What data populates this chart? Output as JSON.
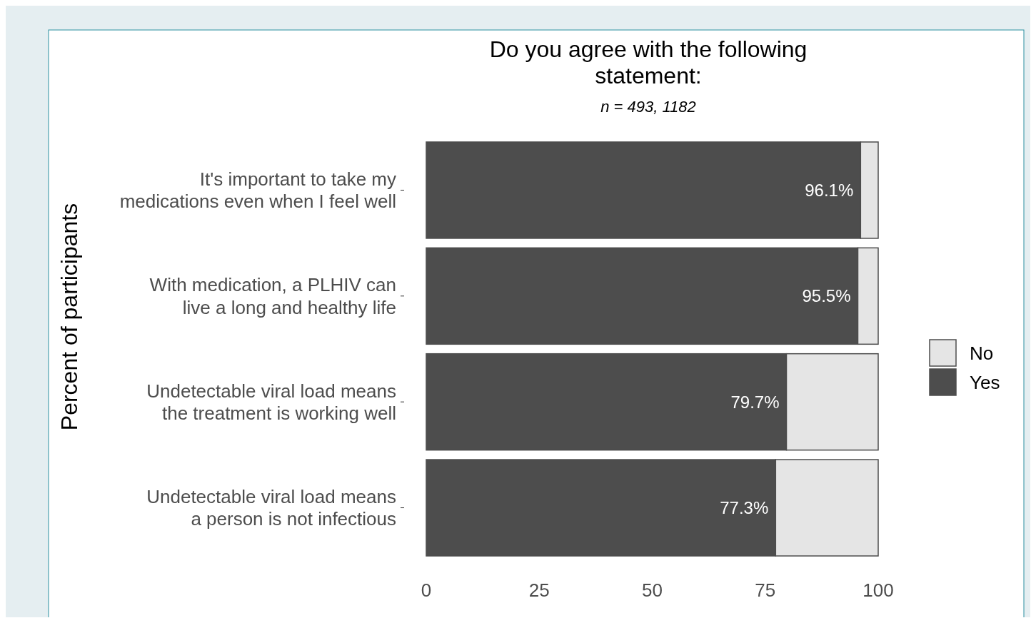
{
  "chart_data": {
    "type": "bar",
    "orientation": "horizontal",
    "stacked": true,
    "title": "Do you agree with the following\nstatement:",
    "subtitle": "n = 493, 1182",
    "ylabel": "Percent of participants",
    "categories": [
      "It's important to take my\nmedications even when I feel well",
      "With medication, a PLHIV can\nlive a long and healthy life",
      "Undetectable viral load means\nthe treatment is working well",
      "Undetectable viral load means\na person is not infectious"
    ],
    "series": [
      {
        "name": "Yes",
        "color": "#4d4d4d",
        "values": [
          96.1,
          95.5,
          79.7,
          77.3
        ],
        "value_labels": [
          "96.1%",
          "95.5%",
          "79.7%",
          "77.3%"
        ]
      },
      {
        "name": "No",
        "color": "#e5e5e5",
        "values": [
          3.9,
          4.5,
          20.3,
          22.7
        ]
      }
    ],
    "xlim": [
      0,
      100
    ],
    "xticks": [
      0,
      25,
      50,
      75,
      100
    ],
    "grid": false,
    "legend": "right"
  }
}
